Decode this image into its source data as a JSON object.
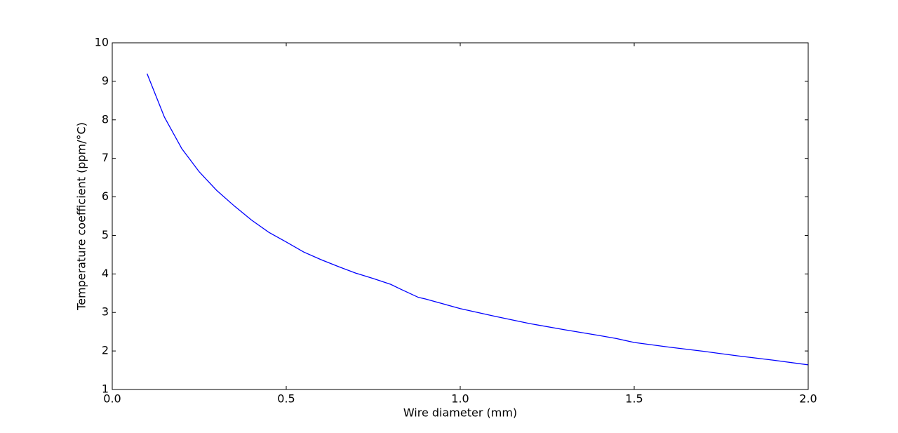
{
  "chart_data": {
    "type": "line",
    "x_label": "Wire diameter (mm)",
    "y_label": "Temperature coefficient (ppm/°C)",
    "x": [
      0.1,
      0.15,
      0.2,
      0.25,
      0.3,
      0.35,
      0.4,
      0.45,
      0.5,
      0.55,
      0.6,
      0.65,
      0.7,
      0.75,
      0.8,
      0.83,
      0.88,
      0.9,
      1.0,
      1.1,
      1.2,
      1.3,
      1.4,
      1.45,
      1.5,
      1.6,
      1.7,
      1.8,
      1.9,
      2.0
    ],
    "values": [
      9.2,
      8.07,
      7.25,
      6.65,
      6.17,
      5.77,
      5.4,
      5.08,
      4.83,
      4.57,
      4.37,
      4.19,
      4.02,
      3.88,
      3.73,
      3.6,
      3.39,
      3.35,
      3.1,
      2.9,
      2.71,
      2.55,
      2.4,
      2.32,
      2.22,
      2.1,
      1.99,
      1.87,
      1.76,
      1.64
    ],
    "color": "#0000ff",
    "xlim": [
      0,
      2
    ],
    "ylim": [
      1,
      10
    ],
    "xticks": [
      {
        "value": 0,
        "label": "0.0"
      },
      {
        "value": 0.5,
        "label": "0.5"
      },
      {
        "value": 1,
        "label": "1.0"
      },
      {
        "value": 1.5,
        "label": "1.5"
      },
      {
        "value": 2,
        "label": "2.0"
      }
    ],
    "yticks": [
      1,
      2,
      3,
      4,
      5,
      6,
      7,
      8,
      9,
      10
    ]
  }
}
